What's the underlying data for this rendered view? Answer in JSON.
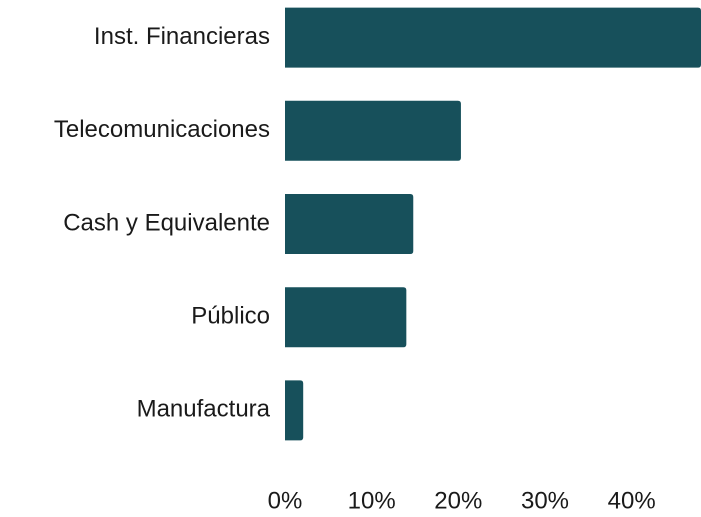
{
  "chart_data": {
    "type": "bar",
    "orientation": "horizontal",
    "categories": [
      "Inst. Financieras",
      "Telecomunicaciones",
      "Cash y Equivalente",
      "Público",
      "Manufactura"
    ],
    "values": [
      48,
      20.3,
      14.8,
      14,
      2.1
    ],
    "color": "#17505b",
    "xlim": [
      0,
      48
    ],
    "xticks": [
      {
        "value": 0,
        "label": "0%"
      },
      {
        "value": 10,
        "label": "10%"
      },
      {
        "value": 20,
        "label": "20%"
      },
      {
        "value": 30,
        "label": "30%"
      },
      {
        "value": 40,
        "label": "40%"
      }
    ],
    "grid": false
  }
}
